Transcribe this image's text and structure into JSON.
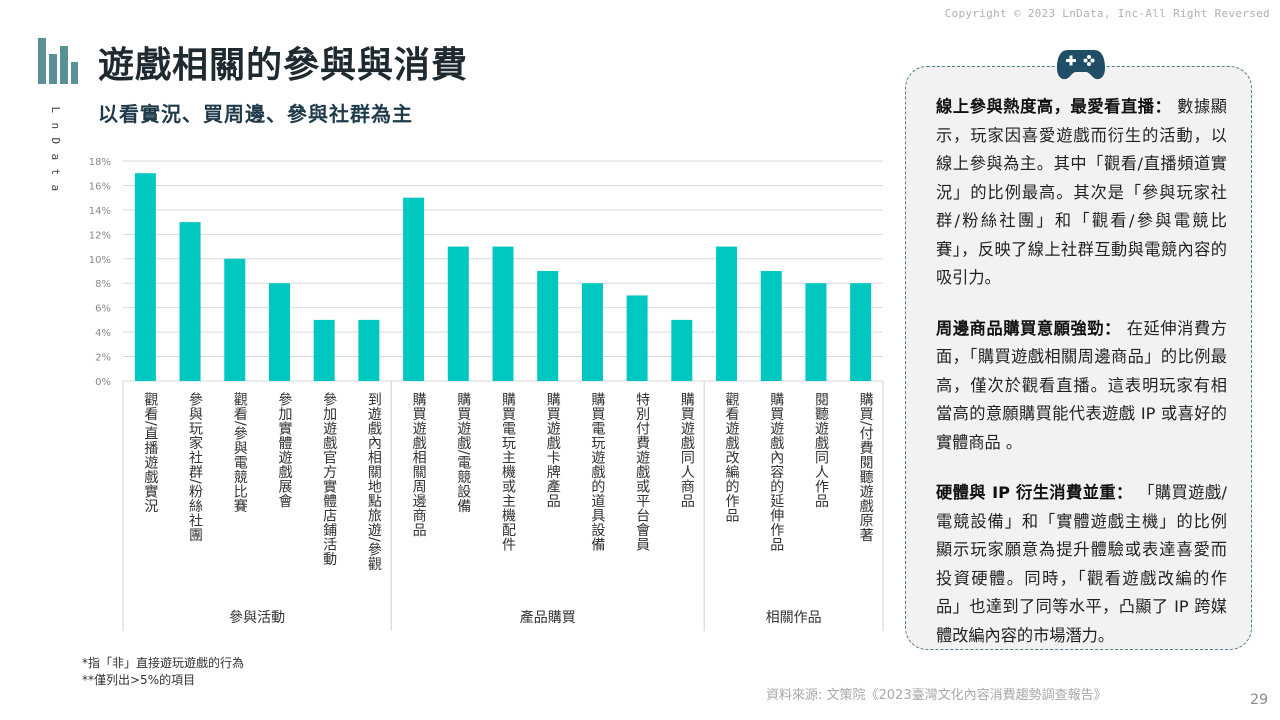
{
  "copyright": "Copyright © 2023 LnData, Inc-All Right Reversed",
  "brand_vertical": [
    "L",
    "n",
    "D",
    "a",
    "t",
    "a"
  ],
  "title": "遊戲相關的參與與消費",
  "subtitle": "以看實況、買周邊、參與社群為主",
  "colors": {
    "bar": "#00c8c0",
    "accent": "#1f4e66",
    "logo": "#5b8f98"
  },
  "chart_data": {
    "type": "bar",
    "title": "",
    "xlabel": "",
    "ylabel": "",
    "ylim": [
      0,
      18
    ],
    "yticks": [
      "0%",
      "2%",
      "4%",
      "6%",
      "8%",
      "10%",
      "12%",
      "14%",
      "16%",
      "18%"
    ],
    "grid": true,
    "categories": [
      "觀看/直播遊戲實況",
      "參與玩家社群/粉絲社團",
      "觀看/參與電競比賽",
      "參加實體遊戲展會",
      "參加遊戲官方實體店鋪活動",
      "到遊戲內相關地點旅遊/參觀",
      "購買遊戲相關周邊商品",
      "購買遊戲/電競設備",
      "購買電玩主機或主機配件",
      "購買遊戲卡牌產品",
      "購買電玩遊戲的道具設備",
      "特別付費遊戲或平台會員",
      "購買遊戲同人商品",
      "觀看遊戲改編的作品",
      "購買遊戲內容的延伸作品",
      "閱聽遊戲同人作品",
      "購買/付費閱聽遊戲原著"
    ],
    "values": [
      17,
      13,
      10,
      8,
      5,
      5,
      15,
      11,
      11,
      9,
      8,
      7,
      5,
      11,
      9,
      8,
      8
    ],
    "groups": [
      {
        "label": "參與活動",
        "count": 6
      },
      {
        "label": "產品購買",
        "count": 7
      },
      {
        "label": "相關作品",
        "count": 4
      }
    ]
  },
  "notes": [
    "*指「非」直接遊玩遊戲的行為",
    "**僅列出>5%的項目"
  ],
  "source": "資料來源: 文策院《2023臺灣文化內容消費趨勢調查報告》",
  "page_number": "29",
  "panel": {
    "icon": "gamepad-icon",
    "sections": [
      {
        "heading": "線上參與熱度高，最愛看直播：",
        "body": " 數據顯示，玩家因喜愛遊戲而衍生的活動，以線上參與為主。其中「觀看/直播頻道實況」的比例最高。其次是「參與玩家社群/粉絲社團」和「觀看/參與電競比賽」，反映了線上社群互動與電競內容的吸引力。"
      },
      {
        "heading": "周邊商品購買意願強勁：",
        "body": " 在延伸消費方面，「購買遊戲相關周邊商品」的比例最高，僅次於觀看直播。這表明玩家有相當高的意願購買能代表遊戲 IP 或喜好的實體商品 。"
      },
      {
        "heading": "硬體與 IP 衍生消費並重：",
        "body": " 「購買遊戲/電競設備」和「實體遊戲主機」的比例顯示玩家願意為提升體驗或表達喜愛而投資硬體。同時，「觀看遊戲改編的作品」也達到了同等水平，凸顯了 IP 跨媒體改編內容的市場潛力。"
      }
    ]
  }
}
